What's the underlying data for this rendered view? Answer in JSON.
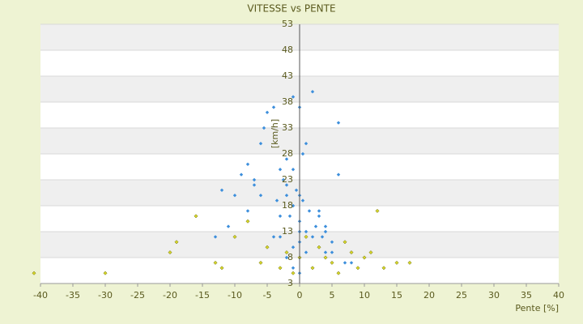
{
  "chart_data": {
    "type": "scatter",
    "title": "VITESSE vs PENTE",
    "xlabel": "Pente [%]",
    "ylabel": "[km/h]",
    "xlim": [
      -40,
      40
    ],
    "xticks": [
      -40,
      -35,
      -30,
      -25,
      -20,
      -15,
      -10,
      -5,
      0,
      5,
      10,
      15,
      20,
      25,
      30,
      35,
      40
    ],
    "ylim": [
      3,
      53
    ],
    "yticks": [
      3,
      8,
      13,
      18,
      23,
      28,
      33,
      38,
      43,
      48,
      53
    ],
    "grid": true,
    "series": [
      {
        "color": "#3d8fdc",
        "x": [
          -8,
          -7,
          -6,
          -5,
          -4,
          -3,
          -2,
          -1,
          0,
          1,
          2,
          3,
          4,
          -1,
          0,
          2,
          -2,
          0.5,
          -3,
          3,
          -4,
          4,
          5,
          6,
          -6,
          -5.5,
          -7,
          -9,
          -10,
          -12,
          -13,
          1,
          -1,
          6,
          0.5,
          -0.5,
          1.5,
          -1.5,
          0,
          -2.5,
          2.5,
          3.5,
          -3.5,
          -8,
          7,
          8,
          -11,
          1,
          -1,
          0,
          2,
          -2,
          0,
          3,
          5,
          -3,
          0,
          -1,
          4,
          -2
        ],
        "y": [
          26,
          22,
          30,
          36,
          37,
          25,
          20,
          18,
          15,
          13,
          12,
          10,
          9,
          39,
          37,
          40,
          22,
          28,
          16,
          17,
          12,
          14,
          11,
          24,
          20,
          33,
          23,
          24,
          20,
          21,
          12,
          30,
          25,
          34,
          19,
          21,
          17,
          16,
          13,
          23,
          14,
          12,
          19,
          17,
          7,
          7,
          14,
          9,
          10,
          11,
          6,
          8,
          20,
          16,
          9,
          12,
          5,
          6,
          13,
          27
        ]
      },
      {
        "color": "#d6d62a",
        "x": [
          -41,
          -30,
          -20,
          -19,
          -16,
          -13,
          -12,
          -10,
          -8,
          -6,
          -5,
          -3,
          -2,
          -1,
          0,
          1,
          2,
          3,
          4,
          5,
          6,
          7,
          8,
          9,
          10,
          11,
          12,
          13,
          15,
          17
        ],
        "y": [
          5,
          5,
          9,
          11,
          16,
          7,
          6,
          12,
          15,
          7,
          10,
          6,
          9,
          5,
          8,
          12,
          6,
          10,
          8,
          7,
          5,
          11,
          9,
          6,
          8,
          9,
          17,
          6,
          7,
          7
        ]
      }
    ]
  }
}
